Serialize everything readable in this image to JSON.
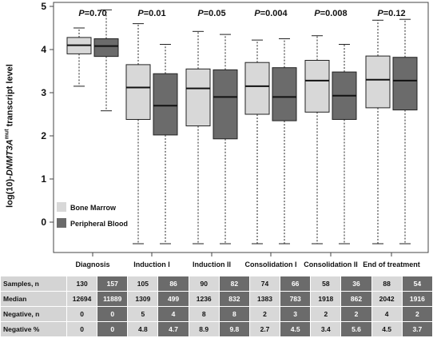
{
  "chart_data": {
    "type": "box",
    "ylabel": {
      "pre": "log(10)-",
      "gene": "DNMT3A",
      "sup": "mut",
      "post": " transcript level"
    },
    "ylim": [
      -0.6,
      5
    ],
    "yticks": [
      "0",
      "1",
      "2",
      "3",
      "4",
      "5"
    ],
    "categories": [
      "Diagnosis",
      "Induction I",
      "Induction II",
      "Consolidation I",
      "Consolidation II",
      "End of treatment"
    ],
    "p_values": [
      "P=0.70",
      "P=0.01",
      "P=0.05",
      "P=0.004",
      "P=0.008",
      "P=0.12"
    ],
    "legend": [
      {
        "name": "Bone Marrow",
        "color": "#d8d8d8"
      },
      {
        "name": "Peripheral Blood",
        "color": "#6b6b6b"
      }
    ],
    "series": [
      {
        "name": "Bone Marrow",
        "color": "#d8d8d8",
        "boxes": [
          {
            "min": 3.15,
            "q1": 3.9,
            "median": 4.1,
            "q3": 4.28,
            "max": 4.5
          },
          {
            "min": -0.5,
            "q1": 2.38,
            "median": 3.12,
            "q3": 3.65,
            "max": 4.6
          },
          {
            "min": -0.5,
            "q1": 2.23,
            "median": 3.1,
            "q3": 3.55,
            "max": 4.42
          },
          {
            "min": -0.5,
            "q1": 2.5,
            "median": 3.15,
            "q3": 3.7,
            "max": 4.22
          },
          {
            "min": -0.5,
            "q1": 2.55,
            "median": 3.28,
            "q3": 3.75,
            "max": 4.32
          },
          {
            "min": -0.5,
            "q1": 2.65,
            "median": 3.3,
            "q3": 3.85,
            "max": 4.68
          }
        ]
      },
      {
        "name": "Peripheral Blood",
        "color": "#6b6b6b",
        "boxes": [
          {
            "min": 2.58,
            "q1": 3.84,
            "median": 4.08,
            "q3": 4.25,
            "max": 4.92
          },
          {
            "min": -0.5,
            "q1": 2.02,
            "median": 2.7,
            "q3": 3.44,
            "max": 4.12
          },
          {
            "min": -0.5,
            "q1": 1.93,
            "median": 2.9,
            "q3": 3.53,
            "max": 4.35
          },
          {
            "min": -0.5,
            "q1": 2.35,
            "median": 2.9,
            "q3": 3.58,
            "max": 4.25
          },
          {
            "min": -0.5,
            "q1": 2.38,
            "median": 2.93,
            "q3": 3.48,
            "max": 4.12
          },
          {
            "min": -0.5,
            "q1": 2.6,
            "median": 3.28,
            "q3": 3.82,
            "max": 4.7
          }
        ]
      }
    ]
  },
  "table": {
    "rows": [
      {
        "label": "Samples, n",
        "values": [
          "130",
          "157",
          "105",
          "86",
          "90",
          "82",
          "74",
          "66",
          "58",
          "36",
          "88",
          "54"
        ]
      },
      {
        "label": "Median",
        "values": [
          "12694",
          "11889",
          "1309",
          "499",
          "1236",
          "832",
          "1383",
          "783",
          "1918",
          "862",
          "2042",
          "1916"
        ]
      },
      {
        "label": "Negative, n",
        "values": [
          "0",
          "0",
          "5",
          "4",
          "8",
          "8",
          "2",
          "3",
          "2",
          "2",
          "4",
          "2"
        ]
      },
      {
        "label": "Negative %",
        "values": [
          "0",
          "0",
          "4.8",
          "4.7",
          "8.9",
          "9.8",
          "2.7",
          "4.5",
          "3.4",
          "5.6",
          "4.5",
          "3.7"
        ]
      }
    ]
  }
}
